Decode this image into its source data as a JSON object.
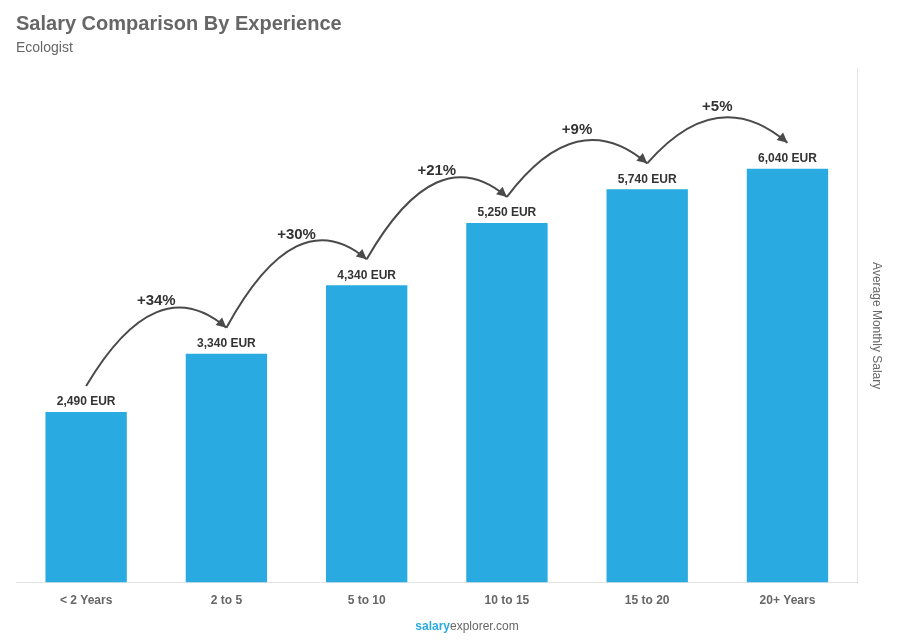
{
  "chart_data": {
    "type": "bar",
    "title": "Salary Comparison By Experience",
    "subtitle": "Ecologist",
    "categories": [
      "< 2 Years",
      "2 to 5",
      "5 to 10",
      "10 to 15",
      "15 to 20",
      "20+ Years"
    ],
    "values": [
      2490,
      3340,
      4340,
      5250,
      5740,
      6040
    ],
    "value_labels": [
      "2,490 EUR",
      "3,340 EUR",
      "4,340 EUR",
      "5,250 EUR",
      "5,740 EUR",
      "6,040 EUR"
    ],
    "data_labels": true,
    "color": "#29abe2",
    "ylabel": "Average Monthly Salary",
    "ylim": [
      0,
      7500
    ],
    "tick_labels": "x",
    "grid": false,
    "annotations": [
      "+34%",
      "+30%",
      "+21%",
      "+9%",
      "+5%"
    ],
    "source": [
      "salary",
      "explorer.com"
    ]
  }
}
